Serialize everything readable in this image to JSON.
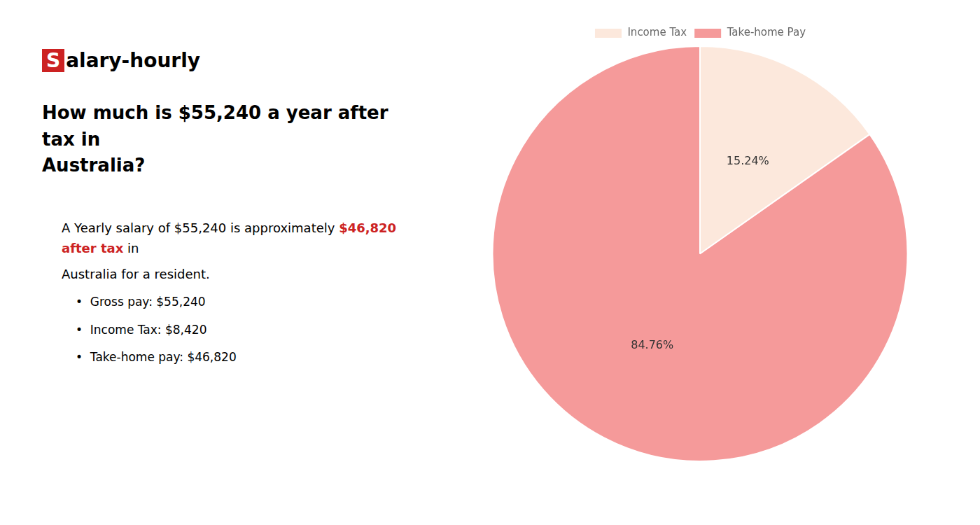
{
  "chart_data": {
    "type": "pie",
    "title": [
      "How much is $55,240 a year after tax in",
      "Australia?"
    ],
    "categories": [
      "Income Tax",
      "Take-home Pay"
    ],
    "values": [
      15.24,
      84.76
    ],
    "value_labels": [
      "15.24%",
      "84.76%"
    ],
    "colors": [
      "#fce8dc",
      "#f59a9a"
    ],
    "data_labels": true,
    "legend": "top",
    "annotations": [
      [
        {
          "text": "S",
          "color": "#cc2222"
        },
        {
          "text": "alary-hourly"
        }
      ],
      [
        {
          "text": "A Yearly salary of $55,240 is approximately "
        },
        {
          "text": "$46,820 after tax",
          "color": "#cc2222"
        },
        {
          "text": " in"
        }
      ],
      [
        {
          "text": "Australia for a resident."
        }
      ],
      [
        {
          "text": "•  Gross pay: $55,240"
        }
      ],
      [
        {
          "text": "•  Income Tax: $8,420"
        }
      ],
      [
        {
          "text": "•  Take-home pay: $46,820"
        }
      ]
    ]
  }
}
